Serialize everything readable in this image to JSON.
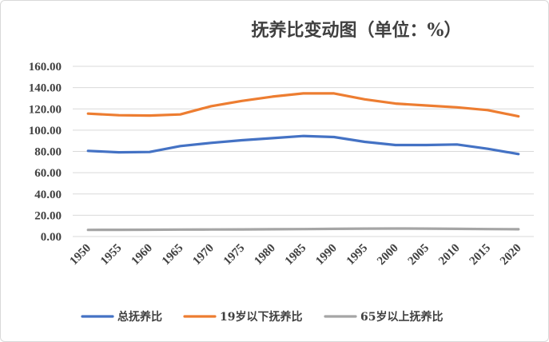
{
  "chart_data": {
    "type": "line",
    "title": "抚养比变动图（单位：%）",
    "xlabel": "",
    "ylabel": "",
    "categories": [
      "1950",
      "1955",
      "1960",
      "1965",
      "1970",
      "1975",
      "1980",
      "1985",
      "1990",
      "1995",
      "2000",
      "2005",
      "2010",
      "2015",
      "2020"
    ],
    "y_tick_labels": [
      "0.00",
      "20.00",
      "40.00",
      "60.00",
      "80.00",
      "100.00",
      "120.00",
      "140.00",
      "160.00"
    ],
    "ylim": [
      0,
      160
    ],
    "grid": true,
    "legend_position": "bottom",
    "series": [
      {
        "name": "总抚养比",
        "color": "#4472c4",
        "values": [
          80.5,
          79.2,
          79.5,
          85.0,
          88.0,
          90.5,
          92.5,
          94.5,
          93.5,
          89.0,
          86.0,
          86.0,
          86.5,
          82.5,
          77.5
        ]
      },
      {
        "name": "19岁以下抚养比",
        "color": "#ed7d31",
        "values": [
          115.5,
          114.0,
          113.7,
          114.8,
          122.5,
          127.5,
          131.5,
          134.5,
          134.5,
          129.0,
          125.0,
          123.2,
          121.5,
          118.8,
          113.0
        ]
      },
      {
        "name": "65岁以上抚养比",
        "color": "#a5a5a5",
        "values": [
          6.2,
          6.3,
          6.4,
          6.5,
          6.6,
          6.7,
          6.8,
          7.0,
          7.2,
          7.4,
          7.5,
          7.4,
          7.2,
          7.0,
          6.8
        ]
      }
    ]
  }
}
